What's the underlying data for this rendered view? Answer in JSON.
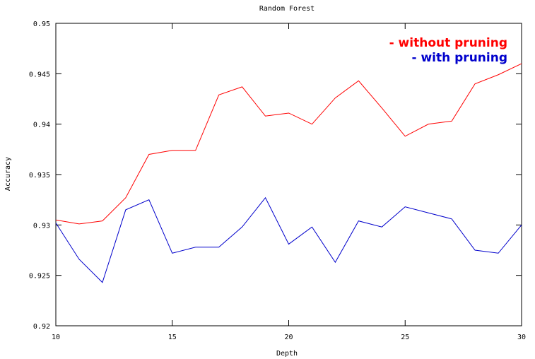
{
  "chart_data": {
    "type": "line",
    "title": "Random Forest",
    "xlabel": "Depth",
    "ylabel": "Accuracy",
    "xlim": [
      10,
      30
    ],
    "ylim": [
      0.92,
      0.95
    ],
    "xticks": [
      10,
      15,
      20,
      25,
      30
    ],
    "yticks": [
      0.92,
      0.925,
      0.93,
      0.935,
      0.94,
      0.945,
      0.95
    ],
    "ytick_labels": [
      "0.92",
      "0.925",
      "0.93",
      "0.935",
      "0.94",
      "0.945",
      "0.95"
    ],
    "grid": false,
    "legend_position": "top-right",
    "x": [
      10,
      11,
      12,
      13,
      14,
      15,
      16,
      17,
      18,
      19,
      20,
      21,
      22,
      23,
      24,
      25,
      26,
      27,
      28,
      29,
      30
    ],
    "series": [
      {
        "name": "- without pruning",
        "color": "#ff0000",
        "values": [
          0.9305,
          0.9301,
          0.9304,
          0.9327,
          0.937,
          0.9374,
          0.9374,
          0.9429,
          0.9437,
          0.9408,
          0.9411,
          0.94,
          0.9426,
          0.9443,
          0.9416,
          0.9388,
          0.94,
          0.9403,
          0.944,
          0.9449,
          0.946
        ]
      },
      {
        "name": "- with pruning",
        "color": "#0000cc",
        "values": [
          0.9302,
          0.9266,
          0.9243,
          0.9315,
          0.9325,
          0.9272,
          0.9278,
          0.9278,
          0.9298,
          0.9327,
          0.9281,
          0.9298,
          0.9263,
          0.9304,
          0.9298,
          0.9318,
          0.9312,
          0.9306,
          0.9275,
          0.9272,
          0.93
        ]
      }
    ]
  }
}
